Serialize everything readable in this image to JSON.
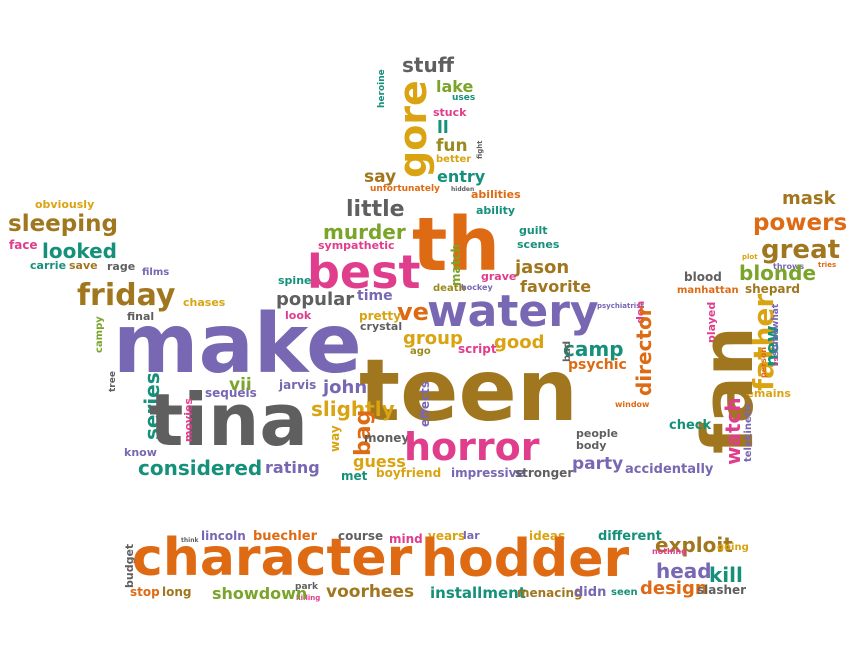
{
  "palette": {
    "orange": "#de6a13",
    "purple": "#7867b2",
    "pink": "#e03d8d",
    "brown": "#a0761f",
    "teal": "#15907a",
    "gray": "#5f5f5f",
    "gold": "#d9a311",
    "green": "#7aa52a",
    "olive": "#9a8a1f"
  },
  "words": [
    {
      "text": "stuff",
      "color": "gray"
    },
    {
      "text": "heroine",
      "color": "teal"
    },
    {
      "text": "gore",
      "color": "gold"
    },
    {
      "text": "lake",
      "color": "green"
    },
    {
      "text": "uses",
      "color": "teal"
    },
    {
      "text": "stuck",
      "color": "pink"
    },
    {
      "text": "ll",
      "color": "teal"
    },
    {
      "text": "fun",
      "color": "olive"
    },
    {
      "text": "better",
      "color": "gold"
    },
    {
      "text": "fight",
      "color": "gray"
    },
    {
      "text": "say",
      "color": "brown"
    },
    {
      "text": "entry",
      "color": "teal"
    },
    {
      "text": "unfortunately",
      "color": "orange"
    },
    {
      "text": "abilities",
      "color": "orange"
    },
    {
      "text": "hidden",
      "color": "gray"
    },
    {
      "text": "ability",
      "color": "teal"
    },
    {
      "text": "obviously",
      "color": "gold"
    },
    {
      "text": "little",
      "color": "gray"
    },
    {
      "text": "th",
      "color": "orange"
    },
    {
      "text": "mask",
      "color": "brown"
    },
    {
      "text": "sleeping",
      "color": "brown"
    },
    {
      "text": "murder",
      "color": "green"
    },
    {
      "text": "guilt",
      "color": "teal"
    },
    {
      "text": "powers",
      "color": "orange"
    },
    {
      "text": "face",
      "color": "pink"
    },
    {
      "text": "looked",
      "color": "teal"
    },
    {
      "text": "sympathetic",
      "color": "pink"
    },
    {
      "text": "scenes",
      "color": "teal"
    },
    {
      "text": "great",
      "color": "brown"
    },
    {
      "text": "carrie",
      "color": "teal"
    },
    {
      "text": "save",
      "color": "brown"
    },
    {
      "text": "rage",
      "color": "gray"
    },
    {
      "text": "best",
      "color": "pink"
    },
    {
      "text": "match",
      "color": "green"
    },
    {
      "text": "jason",
      "color": "brown"
    },
    {
      "text": "plot",
      "color": "gold"
    },
    {
      "text": "throws",
      "color": "purple"
    },
    {
      "text": "films",
      "color": "purple"
    },
    {
      "text": "grave",
      "color": "pink"
    },
    {
      "text": "blonde",
      "color": "green"
    },
    {
      "text": "tries",
      "color": "orange"
    },
    {
      "text": "friday",
      "color": "brown"
    },
    {
      "text": "chases",
      "color": "gold"
    },
    {
      "text": "spine",
      "color": "teal"
    },
    {
      "text": "time",
      "color": "purple"
    },
    {
      "text": "death",
      "color": "olive"
    },
    {
      "text": "favorite",
      "color": "brown"
    },
    {
      "text": "blood",
      "color": "gray"
    },
    {
      "text": "shepard",
      "color": "brown"
    },
    {
      "text": "popular",
      "color": "gray"
    },
    {
      "text": "hockey",
      "color": "purple"
    },
    {
      "text": "manhattan",
      "color": "orange"
    },
    {
      "text": "final",
      "color": "gray"
    },
    {
      "text": "look",
      "color": "pink"
    },
    {
      "text": "ve",
      "color": "orange"
    },
    {
      "text": "watery",
      "color": "purple"
    },
    {
      "text": "psychiatrist",
      "color": "purple"
    },
    {
      "text": "don",
      "color": "pink"
    },
    {
      "text": "remains",
      "color": "gold"
    },
    {
      "text": "pretty",
      "color": "gold"
    },
    {
      "text": "crystal",
      "color": "gray"
    },
    {
      "text": "campy",
      "color": "green"
    },
    {
      "text": "make",
      "color": "purple"
    },
    {
      "text": "group",
      "color": "gold"
    },
    {
      "text": "good",
      "color": "gold"
    },
    {
      "text": "camp",
      "color": "teal"
    },
    {
      "text": "father",
      "color": "gold"
    },
    {
      "text": "played",
      "color": "pink"
    },
    {
      "text": "new",
      "color": "teal"
    },
    {
      "text": "somewhat",
      "color": "purple"
    },
    {
      "text": "person",
      "color": "orange"
    },
    {
      "text": "vs",
      "color": "pink"
    },
    {
      "text": "ago",
      "color": "olive"
    },
    {
      "text": "script",
      "color": "pink"
    },
    {
      "text": "bad",
      "color": "gray"
    },
    {
      "text": "psychic",
      "color": "orange"
    },
    {
      "text": "director",
      "color": "orange"
    },
    {
      "text": "fan",
      "color": "brown"
    },
    {
      "text": "tree",
      "color": "gray"
    },
    {
      "text": "sequels",
      "color": "purple"
    },
    {
      "text": "vii",
      "color": "green"
    },
    {
      "text": "jarvis",
      "color": "purple"
    },
    {
      "text": "john",
      "color": "purple"
    },
    {
      "text": "teen",
      "color": "brown"
    },
    {
      "text": "window",
      "color": "orange"
    },
    {
      "text": "series",
      "color": "teal"
    },
    {
      "text": "tina",
      "color": "gray"
    },
    {
      "text": "slightly",
      "color": "gold"
    },
    {
      "text": "effects",
      "color": "purple"
    },
    {
      "text": "check",
      "color": "teal"
    },
    {
      "text": "watch",
      "color": "pink"
    },
    {
      "text": "telekinetic",
      "color": "purple"
    },
    {
      "text": "movies",
      "color": "pink"
    },
    {
      "text": "know",
      "color": "purple"
    },
    {
      "text": "way",
      "color": "gold"
    },
    {
      "text": "bag",
      "color": "orange"
    },
    {
      "text": "money",
      "color": "gray"
    },
    {
      "text": "horror",
      "color": "pink"
    },
    {
      "text": "people",
      "color": "gray"
    },
    {
      "text": "body",
      "color": "gray"
    },
    {
      "text": "guess",
      "color": "gold"
    },
    {
      "text": "considered",
      "color": "teal"
    },
    {
      "text": "rating",
      "color": "purple"
    },
    {
      "text": "met",
      "color": "teal"
    },
    {
      "text": "boyfriend",
      "color": "gold"
    },
    {
      "text": "party",
      "color": "purple"
    },
    {
      "text": "impressive",
      "color": "purple"
    },
    {
      "text": "stronger",
      "color": "gray"
    },
    {
      "text": "accidentally",
      "color": "purple"
    },
    {
      "text": "budget",
      "color": "gray"
    },
    {
      "text": "think",
      "color": "gray"
    },
    {
      "text": "lincoln",
      "color": "purple"
    },
    {
      "text": "buechler",
      "color": "orange"
    },
    {
      "text": "course",
      "color": "gray"
    },
    {
      "text": "mind",
      "color": "pink"
    },
    {
      "text": "years",
      "color": "gold"
    },
    {
      "text": "lar",
      "color": "purple"
    },
    {
      "text": "ideas",
      "color": "gold"
    },
    {
      "text": "different",
      "color": "teal"
    },
    {
      "text": "exploit",
      "color": "brown"
    },
    {
      "text": "nothing",
      "color": "pink"
    },
    {
      "text": "going",
      "color": "gold"
    },
    {
      "text": "character",
      "color": "orange"
    },
    {
      "text": "hodder",
      "color": "orange"
    },
    {
      "text": "head",
      "color": "purple"
    },
    {
      "text": "kill",
      "color": "teal"
    },
    {
      "text": "park",
      "color": "gray"
    },
    {
      "text": "killing",
      "color": "pink"
    },
    {
      "text": "stop",
      "color": "orange"
    },
    {
      "text": "long",
      "color": "brown"
    },
    {
      "text": "showdown",
      "color": "green"
    },
    {
      "text": "voorhees",
      "color": "brown"
    },
    {
      "text": "installment",
      "color": "teal"
    },
    {
      "text": "menacing",
      "color": "brown"
    },
    {
      "text": "didn",
      "color": "purple"
    },
    {
      "text": "seen",
      "color": "teal"
    },
    {
      "text": "design",
      "color": "orange"
    },
    {
      "text": "slasher",
      "color": "gray"
    }
  ]
}
